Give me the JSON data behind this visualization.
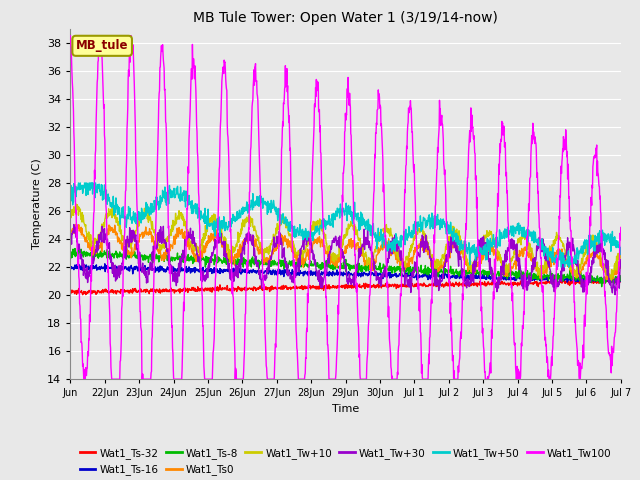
{
  "title": "MB Tule Tower: Open Water 1 (3/19/14-now)",
  "xlabel": "Time",
  "ylabel": "Temperature (C)",
  "ylim": [
    14,
    39
  ],
  "yticks": [
    14,
    16,
    18,
    20,
    22,
    24,
    26,
    28,
    30,
    32,
    34,
    36,
    38
  ],
  "annotation_box": "MB_tule",
  "annotation_color": "#8B0000",
  "annotation_bg": "#FFFF99",
  "annotation_border": "#999900",
  "bg_color": "#E8E8E8",
  "grid_color": "#FFFFFF",
  "tick_labels": [
    "Jun",
    "22Jun",
    "23Jun",
    "24Jun",
    "25Jun",
    "26Jun",
    "27Jun",
    "28Jun",
    "29Jun",
    "30Jun",
    "Jul 1",
    "Jul 2",
    "Jul 3",
    "Jul 4",
    "Jul 5",
    "Jul 6",
    "Jul 7"
  ],
  "series": [
    {
      "name": "Wat1_Ts-32",
      "color": "#FF0000"
    },
    {
      "name": "Wat1_Ts-16",
      "color": "#0000CC"
    },
    {
      "name": "Wat1_Ts-8",
      "color": "#00BB00"
    },
    {
      "name": "Wat1_Ts0",
      "color": "#FF8800"
    },
    {
      "name": "Wat1_Tw+10",
      "color": "#CCCC00"
    },
    {
      "name": "Wat1_Tw+30",
      "color": "#9900CC"
    },
    {
      "name": "Wat1_Tw+50",
      "color": "#00CCCC"
    },
    {
      "name": "Wat1_Tw100",
      "color": "#FF00FF"
    }
  ]
}
